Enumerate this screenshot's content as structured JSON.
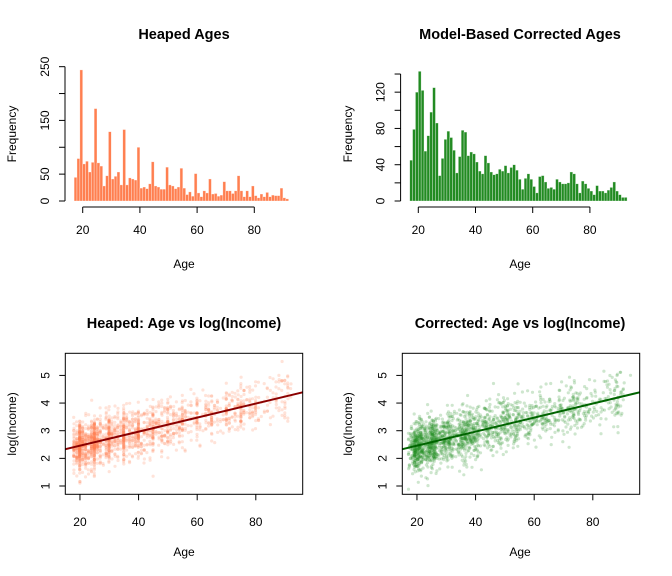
{
  "chart_data": [
    {
      "type": "bar",
      "title": "Heaped Ages",
      "xlabel": "Age",
      "ylabel": "Frequency",
      "color": "#FF7F50",
      "xticks": [
        20,
        40,
        60,
        80
      ],
      "yticks": [
        0,
        50,
        100,
        150,
        200,
        250
      ],
      "ytick_labels": [
        "0",
        "50",
        "",
        "150",
        "",
        "250"
      ],
      "ylim": [
        0,
        250
      ],
      "bin_ages": [
        18,
        19,
        20,
        21,
        22,
        23,
        24,
        25,
        26,
        27,
        28,
        29,
        30,
        31,
        32,
        33,
        34,
        35,
        36,
        37,
        38,
        39,
        40,
        41,
        42,
        43,
        44,
        45,
        46,
        47,
        48,
        49,
        50,
        51,
        52,
        53,
        54,
        55,
        56,
        57,
        58,
        59,
        60,
        61,
        62,
        63,
        64,
        65,
        66,
        67,
        68,
        69,
        70,
        71,
        72,
        73,
        74,
        75,
        76,
        77,
        78,
        79,
        80,
        81,
        82,
        83,
        84,
        85,
        86,
        87,
        88,
        89,
        90,
        91,
        92
      ],
      "values": [
        44,
        79,
        244,
        69,
        74,
        54,
        72,
        172,
        71,
        65,
        28,
        47,
        129,
        41,
        46,
        54,
        30,
        133,
        30,
        43,
        41,
        39,
        100,
        24,
        26,
        23,
        32,
        73,
        28,
        26,
        22,
        22,
        63,
        30,
        28,
        23,
        26,
        61,
        24,
        12,
        17,
        9,
        51,
        15,
        8,
        19,
        15,
        41,
        13,
        14,
        9,
        11,
        36,
        19,
        19,
        14,
        19,
        47,
        19,
        8,
        19,
        8,
        28,
        10,
        6,
        13,
        8,
        16,
        8,
        11,
        10,
        10,
        24,
        6,
        4
      ]
    },
    {
      "type": "bar",
      "title": "Model-Based Corrected Ages",
      "xlabel": "Age",
      "ylabel": "Frequency",
      "color": "#228B22",
      "xticks": [
        20,
        40,
        60,
        80
      ],
      "yticks": [
        0,
        20,
        40,
        60,
        80,
        100,
        120,
        140
      ],
      "ytick_labels": [
        "0",
        "",
        "40",
        "",
        "80",
        "",
        "120",
        ""
      ],
      "ylim": [
        0,
        140
      ],
      "bin_ages": [
        18,
        19,
        20,
        21,
        22,
        23,
        24,
        25,
        26,
        27,
        28,
        29,
        30,
        31,
        32,
        33,
        34,
        35,
        36,
        37,
        38,
        39,
        40,
        41,
        42,
        43,
        44,
        45,
        46,
        47,
        48,
        49,
        50,
        51,
        52,
        53,
        54,
        55,
        56,
        57,
        58,
        59,
        60,
        61,
        62,
        63,
        64,
        65,
        66,
        67,
        68,
        69,
        70,
        71,
        72,
        73,
        74,
        75,
        76,
        77,
        78,
        79,
        80,
        81,
        82,
        83,
        84,
        85,
        86,
        87,
        88,
        89,
        90,
        91,
        92,
        93
      ],
      "values": [
        45,
        79,
        120,
        143,
        122,
        55,
        72,
        98,
        125,
        86,
        28,
        47,
        68,
        77,
        70,
        56,
        31,
        49,
        78,
        76,
        50,
        54,
        52,
        43,
        33,
        30,
        50,
        42,
        32,
        29,
        30,
        35,
        33,
        39,
        31,
        37,
        40,
        34,
        24,
        13,
        25,
        30,
        24,
        16,
        9,
        27,
        28,
        21,
        14,
        15,
        13,
        24,
        21,
        19,
        19,
        20,
        32,
        30,
        19,
        9,
        22,
        19,
        14,
        11,
        7,
        17,
        11,
        11,
        9,
        12,
        15,
        21,
        11,
        7,
        4,
        4
      ]
    },
    {
      "type": "scatter",
      "title": "Heaped: Age vs log(Income)",
      "xlabel": "Age",
      "ylabel": "log(Income)",
      "point_color": "#FF7F50",
      "line_color": "#8B0000",
      "xticks": [
        20,
        40,
        60,
        80
      ],
      "yticks": [
        1,
        2,
        3,
        4,
        5
      ],
      "xlim": [
        15,
        96
      ],
      "ylim": [
        0.7,
        5.8
      ],
      "fit": {
        "intercept": 1.95,
        "slope": 0.0254
      },
      "grid": false
    },
    {
      "type": "scatter",
      "title": "Corrected: Age vs log(Income)",
      "xlabel": "Age",
      "ylabel": "log(Income)",
      "point_color": "#228B22",
      "line_color": "#006400",
      "xticks": [
        20,
        40,
        60,
        80
      ],
      "yticks": [
        1,
        2,
        3,
        4,
        5
      ],
      "xlim": [
        15,
        96
      ],
      "ylim": [
        0.7,
        5.8
      ],
      "fit": {
        "intercept": 1.95,
        "slope": 0.0254
      },
      "grid": false
    }
  ]
}
